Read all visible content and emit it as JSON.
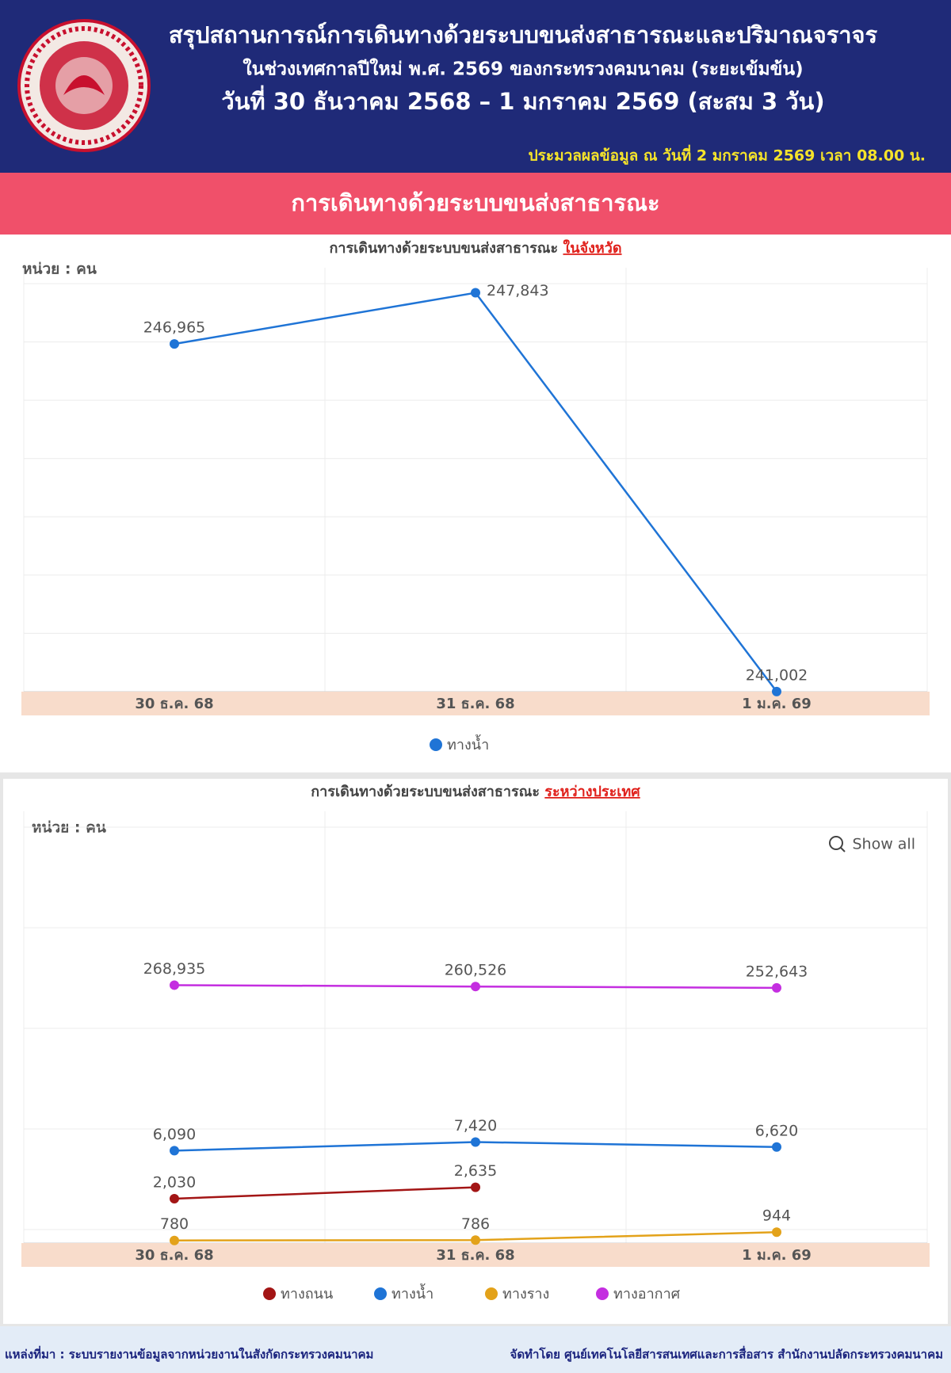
{
  "header": {
    "title": "สรุปสถานการณ์การเดินทางด้วยระบบขนส่งสาธารณะและปริมาณจราจร",
    "subtitle": "ในช่วงเทศกาลปีใหม่ พ.ศ. 2569 ของกระทรวงคมนาคม (ระยะเข้มข้น)",
    "date_range": "วันที่  30 ธันวาคม 2568 – 1 มกราคม 2569 (สะสม 3 วัน)",
    "as_of": "ประมวลผลข้อมูล ณ วันที่  2 มกราคม 2569 เวลา 08.00 น."
  },
  "section_title": "การเดินทางด้วยระบบขนส่งสาธารณะ",
  "chart_data": [
    {
      "type": "line",
      "title": "การเดินทางด้วยระบบขนส่งสาธารณะ",
      "title_highlight": "ในจังหวัด",
      "unit_label": "หน่วย : คน",
      "categories": [
        "30 ธ.ค. 68",
        "31 ธ.ค. 68",
        "1 ม.ค. 69"
      ],
      "series": [
        {
          "name": "ทางน้ำ",
          "color": "#1f74d6",
          "values": [
            246965,
            247843,
            241002
          ],
          "value_labels": [
            "246,965",
            "247,843",
            "241,002"
          ]
        }
      ],
      "ylim": [
        241000,
        248000
      ],
      "ygrid": [
        241000,
        242000,
        243000,
        244000,
        245000,
        246000,
        247000,
        248000
      ],
      "log_scale": false,
      "grid": true
    },
    {
      "type": "line",
      "title": "การเดินทางด้วยระบบขนส่งสาธารณะ",
      "title_highlight": "ระหว่างประเทศ",
      "unit_label": "หน่วย : คน",
      "reset_zoom_label": "Show all",
      "categories": [
        "30 ธ.ค. 68",
        "31 ธ.ค. 68",
        "1 ม.ค. 69"
      ],
      "series": [
        {
          "name": "ทางถนน",
          "color": "#a31515",
          "values": [
            2030,
            2635,
            null
          ],
          "value_labels": [
            "2,030",
            "2,635",
            null
          ]
        },
        {
          "name": "ทางน้ำ",
          "color": "#1f74d6",
          "values": [
            6090,
            7420,
            6620
          ],
          "value_labels": [
            "6,090",
            "7,420",
            "6,620"
          ]
        },
        {
          "name": "ทางราง",
          "color": "#e3a21a",
          "values": [
            780,
            786,
            944
          ],
          "value_labels": [
            "780",
            "786",
            "944"
          ]
        },
        {
          "name": "ทางอากาศ",
          "color": "#c42ee0",
          "values": [
            268935,
            260526,
            252643
          ],
          "value_labels": [
            "268,935",
            "260,526",
            "252,643"
          ]
        }
      ],
      "ylim": [
        735,
        10000000
      ],
      "ygrid": [
        1000,
        10000,
        100000,
        1000000,
        10000000
      ],
      "log_scale": true,
      "grid": true
    }
  ],
  "footer": {
    "source": "แหล่งที่มา : ระบบรายงานข้อมูลจากหน่วยงานในสังกัดกระทรวงคมนาคม",
    "credit": "จัดทำโดย ศูนย์เทคโนโลยีสารสนเทศและการสื่อสาร สำนักงานปลัดกระทรวงคมนาคม"
  }
}
